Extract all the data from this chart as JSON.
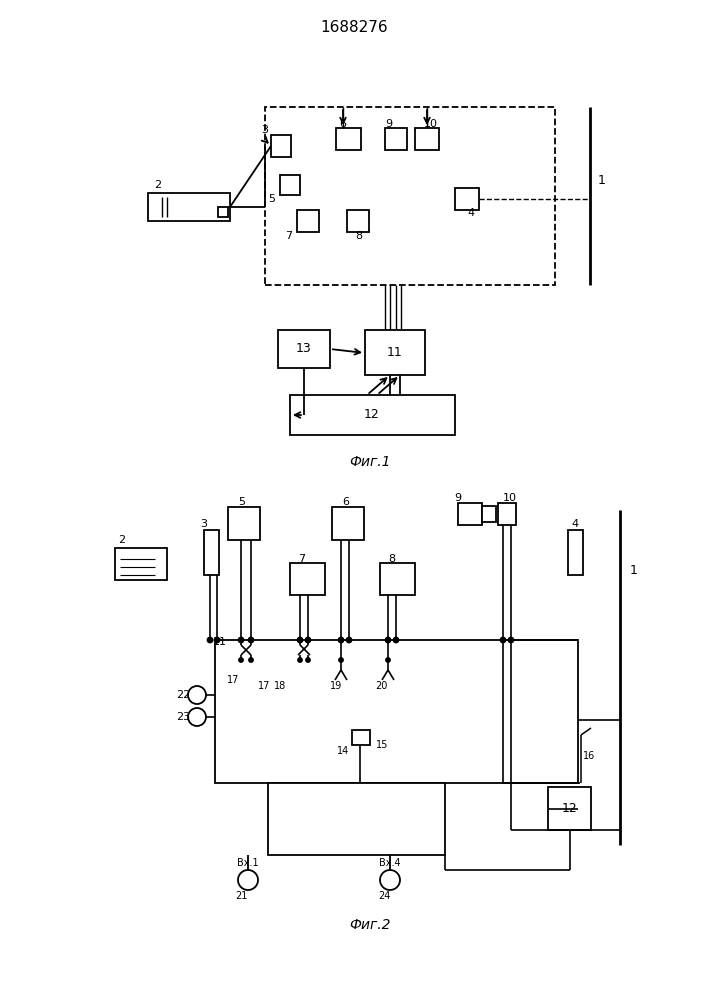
{
  "title": "1688276",
  "fig1_label": "Фиг.1",
  "fig2_label": "Фиг.2",
  "bg_color": "#ffffff"
}
